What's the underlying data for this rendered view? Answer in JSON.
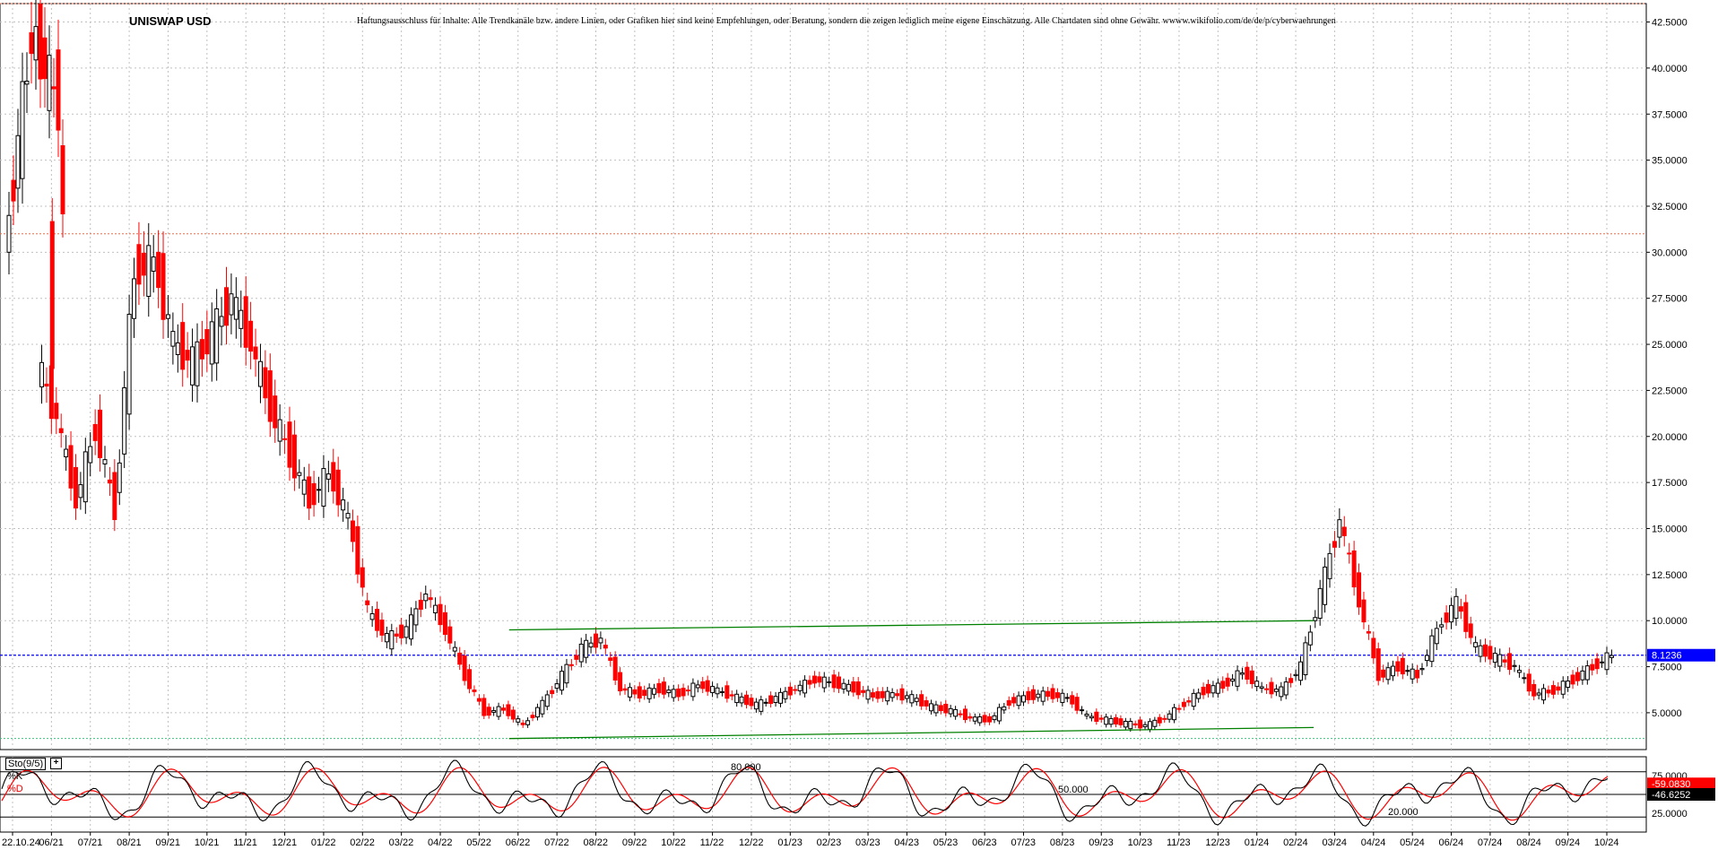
{
  "title": "UNISWAP USD",
  "disclaimer": "Haftungsausschluss für Inhalte: Alle Trendkanäle bzw. andere Linien, oder Grafiken hier sind keine Empfehlungen, oder Beratung, sondern die zeigen lediglich meine eigene Einschätzung. Alle Chartdaten sind ohne Gewähr.  wwww.wikifolio.com/de/de/p/cyberwaehrungen",
  "colors": {
    "up": "#000000",
    "down": "#ff0000",
    "channel": "#008000",
    "price_line": "#0000ff",
    "stoch_k": "#000000",
    "stoch_d": "#ff0000"
  },
  "indicator": {
    "label": "Sto(9/5)",
    "k_label": "%K",
    "d_label": "%D",
    "plus_icon": "plus-icon",
    "k_value": "-59.0830",
    "d_value": "-46.6252",
    "level_80": "80.000",
    "level_50": "50.000",
    "level_20": "20.000"
  },
  "current_price_label": "8.1236",
  "chart_data": [
    {
      "type": "candlestick",
      "title": "UNISWAP USD",
      "xlabel": "",
      "ylabel": "",
      "x_tick_labels": [
        "22.10.24",
        "06/21",
        "07/21",
        "08/21",
        "09/21",
        "10/21",
        "11/21",
        "12/21",
        "01/22",
        "02/22",
        "03/22",
        "04/22",
        "05/22",
        "06/22",
        "07/22",
        "08/22",
        "09/22",
        "10/22",
        "11/22",
        "12/22",
        "01/23",
        "02/23",
        "03/23",
        "04/23",
        "05/23",
        "06/23",
        "07/23",
        "08/23",
        "09/23",
        "10/23",
        "11/23",
        "12/23",
        "01/24",
        "02/24",
        "03/24",
        "04/24",
        "05/24",
        "06/24",
        "07/24",
        "08/24",
        "09/24",
        "10/24"
      ],
      "y_tick_labels": [
        "5.0000",
        "7.5000",
        "10.0000",
        "12.5000",
        "15.0000",
        "17.5000",
        "20.0000",
        "22.5000",
        "25.0000",
        "27.5000",
        "30.0000",
        "32.5000",
        "35.0000",
        "37.5000",
        "40.0000",
        "42.5000"
      ],
      "ylim": [
        3.0,
        43.5
      ],
      "grid": true,
      "current_price": 8.1236,
      "close_series": [
        [
          "05/21",
          30.0
        ],
        [
          "05/21",
          42.0
        ],
        [
          "05/21",
          38.0
        ],
        [
          "06/21",
          24.0
        ],
        [
          "06/21",
          21.0
        ],
        [
          "07/21",
          16.5
        ],
        [
          "07/21",
          20.5
        ],
        [
          "08/21",
          16.0
        ],
        [
          "08/21",
          29.0
        ],
        [
          "09/21",
          29.5
        ],
        [
          "09/21",
          25.0
        ],
        [
          "10/21",
          24.0
        ],
        [
          "10/21",
          25.5
        ],
        [
          "11/21",
          27.5
        ],
        [
          "11/21",
          25.0
        ],
        [
          "12/21",
          21.5
        ],
        [
          "12/21",
          19.0
        ],
        [
          "01/22",
          16.5
        ],
        [
          "01/22",
          18.0
        ],
        [
          "02/22",
          15.5
        ],
        [
          "02/22",
          10.5
        ],
        [
          "03/22",
          9.0
        ],
        [
          "03/22",
          9.5
        ],
        [
          "04/22",
          11.5
        ],
        [
          "04/22",
          9.5
        ],
        [
          "05/22",
          7.0
        ],
        [
          "05/22",
          5.0
        ],
        [
          "06/22",
          5.2
        ],
        [
          "06/22",
          4.3
        ],
        [
          "07/22",
          5.5
        ],
        [
          "07/22",
          7.0
        ],
        [
          "08/22",
          8.5
        ],
        [
          "08/22",
          9.0
        ],
        [
          "09/22",
          6.3
        ],
        [
          "09/22",
          6.0
        ],
        [
          "10/22",
          6.3
        ],
        [
          "10/22",
          6.0
        ],
        [
          "11/22",
          6.5
        ],
        [
          "11/22",
          6.2
        ],
        [
          "12/22",
          5.8
        ],
        [
          "12/22",
          5.4
        ],
        [
          "01/23",
          5.8
        ],
        [
          "01/23",
          6.3
        ],
        [
          "02/23",
          6.8
        ],
        [
          "02/23",
          6.6
        ],
        [
          "03/23",
          6.3
        ],
        [
          "03/23",
          5.9
        ],
        [
          "04/23",
          6.0
        ],
        [
          "04/23",
          5.8
        ],
        [
          "05/23",
          5.3
        ],
        [
          "05/23",
          5.1
        ],
        [
          "06/23",
          4.7
        ],
        [
          "06/23",
          4.6
        ],
        [
          "07/23",
          5.6
        ],
        [
          "07/23",
          5.9
        ],
        [
          "08/23",
          6.0
        ],
        [
          "08/23",
          5.8
        ],
        [
          "09/23",
          4.8
        ],
        [
          "09/23",
          4.6
        ],
        [
          "10/23",
          4.4
        ],
        [
          "10/23",
          4.3
        ],
        [
          "11/23",
          4.7
        ],
        [
          "11/23",
          5.5
        ],
        [
          "12/23",
          6.2
        ],
        [
          "12/23",
          6.5
        ],
        [
          "01/24",
          7.2
        ],
        [
          "01/24",
          6.3
        ],
        [
          "02/24",
          6.2
        ],
        [
          "02/24",
          7.5
        ],
        [
          "03/24",
          11.5
        ],
        [
          "03/24",
          15.5
        ],
        [
          "04/24",
          11.0
        ],
        [
          "04/24",
          7.0
        ],
        [
          "05/24",
          7.5
        ],
        [
          "05/24",
          7.0
        ],
        [
          "06/24",
          9.5
        ],
        [
          "06/24",
          11.0
        ],
        [
          "07/24",
          8.5
        ],
        [
          "07/24",
          8.0
        ],
        [
          "08/24",
          7.5
        ],
        [
          "08/24",
          6.0
        ],
        [
          "09/24",
          6.2
        ],
        [
          "09/24",
          6.8
        ],
        [
          "10/24",
          7.5
        ],
        [
          "10/24",
          8.1236
        ]
      ],
      "annotations": {
        "channel_upper": {
          "from": [
            "06/22",
            9.5
          ],
          "to": [
            "02/24",
            10.0
          ]
        },
        "channel_lower": {
          "from": [
            "06/22",
            3.6
          ],
          "to": [
            "02/24",
            4.2
          ]
        },
        "resistance_dotted": 31.0,
        "support_dotted": 3.6,
        "top_dotted": 43.5
      }
    },
    {
      "type": "line",
      "title": "Sto(9/5)",
      "ylim": [
        0,
        100
      ],
      "y_tick_labels": [
        "25.0000",
        "75.0000"
      ],
      "levels": [
        20,
        50,
        80
      ],
      "series": [
        {
          "name": "%K",
          "latest": -59.083
        },
        {
          "name": "%D",
          "latest": -46.6252
        }
      ]
    }
  ]
}
